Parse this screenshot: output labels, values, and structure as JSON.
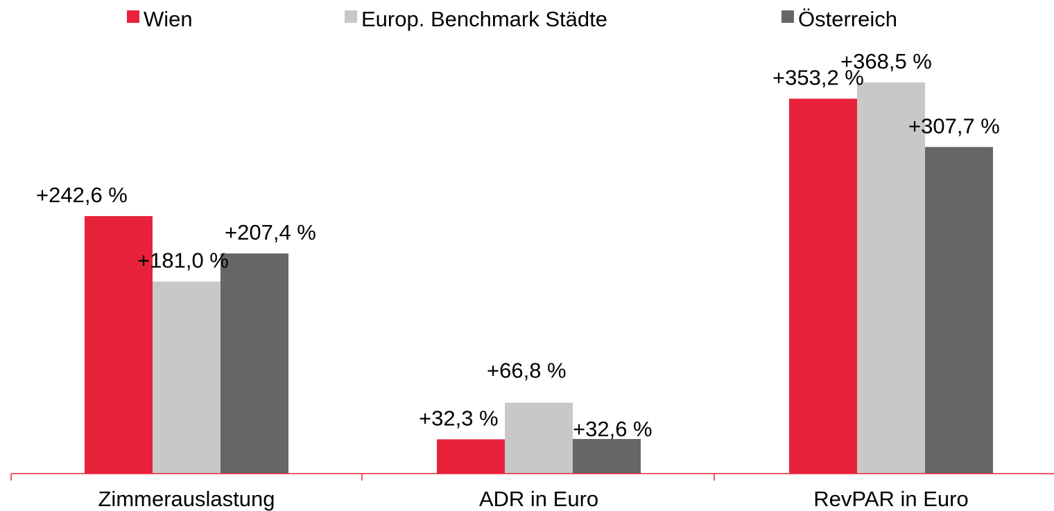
{
  "chart_data": {
    "type": "bar",
    "categories": [
      "Zimmerauslastung",
      "ADR in Euro",
      "RevPAR in Euro"
    ],
    "series": [
      {
        "name": "Wien",
        "values": [
          242.6,
          32.3,
          353.2
        ],
        "labels": [
          "+242,6 %",
          "+32,3 %",
          "+353,2 %"
        ],
        "color": "#e8223a"
      },
      {
        "name": "Europ. Benchmark Städte",
        "values": [
          181.0,
          66.8,
          368.5
        ],
        "labels": [
          "+181,0 %",
          "+66,8 %",
          "+368,5 %"
        ],
        "color": "#c8c8c8"
      },
      {
        "name": "Österreich",
        "values": [
          207.4,
          32.6,
          307.7
        ],
        "labels": [
          "+207,4 %",
          "+32,6 %",
          "+307,7 %"
        ],
        "color": "#666666"
      }
    ],
    "title": "",
    "xlabel": "",
    "ylabel": "",
    "ylim": [
      0,
      400
    ],
    "grid": false,
    "legend_position": "top",
    "axis_color": "#e8223a"
  }
}
